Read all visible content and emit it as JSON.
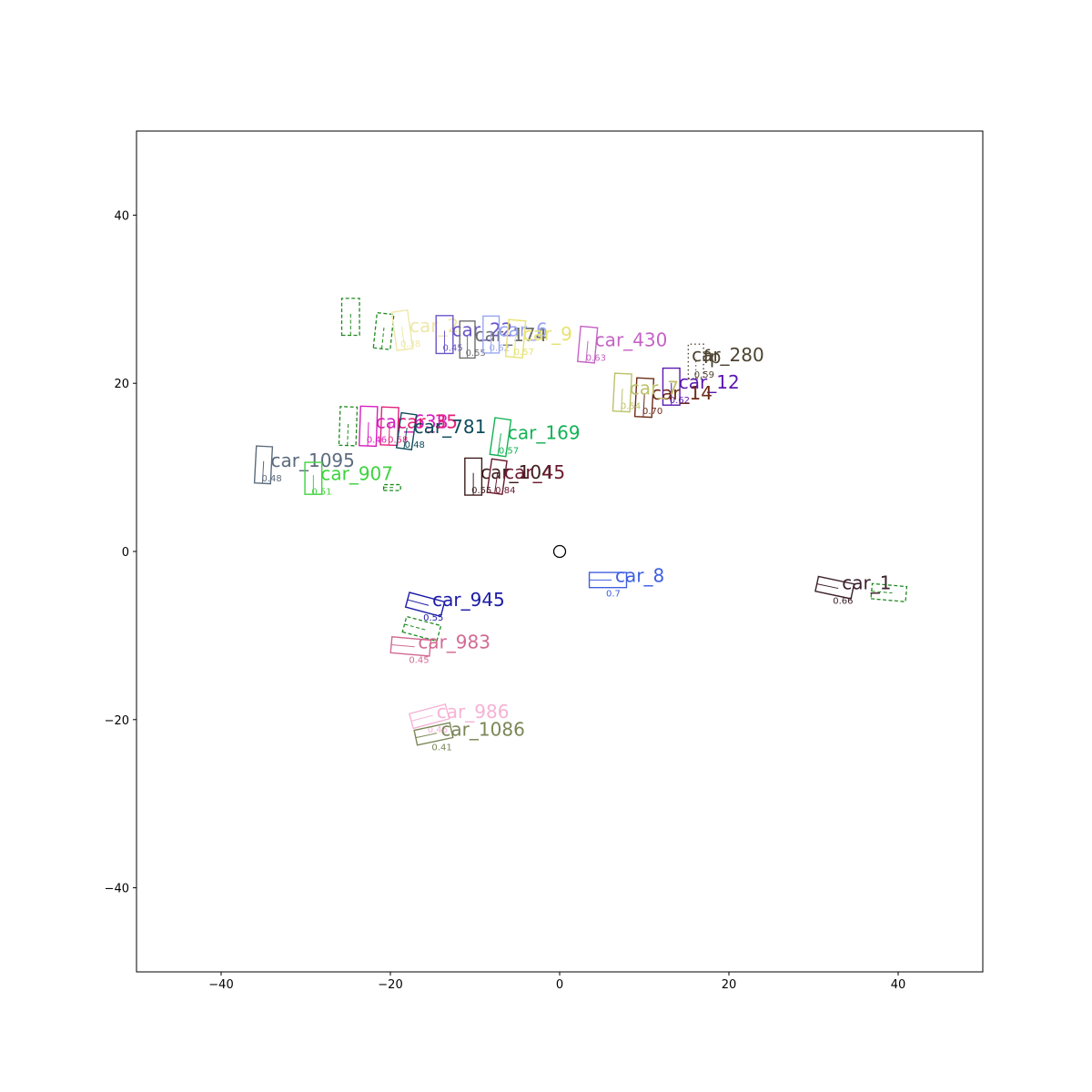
{
  "chart_data": {
    "type": "scatter",
    "title": "",
    "xlabel": "",
    "ylabel": "",
    "xlim": [
      -50,
      50
    ],
    "ylim": [
      -50,
      50
    ],
    "xticks": [
      -40,
      -20,
      0,
      20,
      40
    ],
    "yticks": [
      -40,
      -20,
      0,
      20,
      40
    ],
    "xtick_labels": [
      "−40",
      "−20",
      "0",
      "20",
      "40"
    ],
    "ytick_labels": [
      "−40",
      "−20",
      "0",
      "20",
      "40"
    ],
    "grid": false,
    "ego_marker": {
      "x": 0,
      "y": 0,
      "shape": "circle"
    },
    "detections": [
      {
        "label": "car_1",
        "score": "0.66",
        "x": 32.5,
        "y": -4.3,
        "w": 4.3,
        "l": 1.8,
        "angle": -12,
        "color": "#3b1f2b"
      },
      {
        "label": "car_8",
        "score": "0.7",
        "x": 5.7,
        "y": -3.4,
        "w": 4.4,
        "l": 1.8,
        "angle": 0,
        "color": "#3e5fe0"
      },
      {
        "label": "car_945",
        "score": "0.55",
        "x": -15.9,
        "y": -6.3,
        "w": 4.3,
        "l": 1.8,
        "angle": -15,
        "color": "#1a1aa8"
      },
      {
        "label": "car_983",
        "score": "0.45",
        "x": -17.6,
        "y": -11.3,
        "w": 4.6,
        "l": 1.9,
        "angle": -5,
        "color": "#d36a93"
      },
      {
        "label": "car_986",
        "score": "0.46",
        "x": -15.4,
        "y": -19.6,
        "w": 4.4,
        "l": 1.8,
        "angle": 15,
        "color": "#f4b3d6"
      },
      {
        "label": "car_1086",
        "score": "0.41",
        "x": -14.9,
        "y": -21.7,
        "w": 4.3,
        "l": 1.8,
        "angle": 12,
        "color": "#7b8657"
      },
      {
        "label": "car_1095",
        "score": "0.48",
        "x": -35.0,
        "y": 10.3,
        "w": 1.9,
        "l": 4.4,
        "angle": -3,
        "color": "#5c6b7e"
      },
      {
        "label": "car_907",
        "score": "0.51",
        "x": -29.1,
        "y": 8.7,
        "w": 2.0,
        "l": 3.8,
        "angle": 0,
        "color": "#3ed33e"
      },
      {
        "label": "car_638",
        "score": "0.46",
        "x": -22.6,
        "y": 14.9,
        "w": 2.0,
        "l": 4.7,
        "angle": -2,
        "color": "#d61fc0"
      },
      {
        "label": "car_35",
        "score": "0.58",
        "x": -20.1,
        "y": 14.9,
        "w": 2.0,
        "l": 4.5,
        "angle": -2,
        "color": "#e41f7b"
      },
      {
        "label": "car_781",
        "score": "0.48",
        "x": -18.1,
        "y": 14.3,
        "w": 1.8,
        "l": 4.2,
        "angle": -8,
        "color": "#0f4c5c"
      },
      {
        "label": "car_169",
        "score": "0.57",
        "x": -7.0,
        "y": 13.6,
        "w": 1.9,
        "l": 4.4,
        "angle": -8,
        "color": "#13b254"
      },
      {
        "label": "car_104",
        "score": "0.55",
        "x": -10.2,
        "y": 8.9,
        "w": 2.0,
        "l": 4.4,
        "angle": 0,
        "color": "#3d1c1c"
      },
      {
        "label": "car_45",
        "score": "0.84",
        "x": -7.4,
        "y": 8.9,
        "w": 1.8,
        "l": 4.0,
        "angle": -8,
        "color": "#6b1a2e"
      },
      {
        "label": "car_2",
        "score": "0.38",
        "x": -18.6,
        "y": 26.3,
        "w": 1.9,
        "l": 4.6,
        "angle": 8,
        "color": "#eee8aa"
      },
      {
        "label": "car_22",
        "score": "0.45",
        "x": -13.6,
        "y": 25.8,
        "w": 2.0,
        "l": 4.5,
        "angle": 0,
        "color": "#6a55c9"
      },
      {
        "label": "car_174",
        "score": "0.55",
        "x": -10.9,
        "y": 25.2,
        "w": 1.8,
        "l": 4.4,
        "angle": 0,
        "color": "#6e6e6e"
      },
      {
        "label": "car_6",
        "score": "0.62",
        "x": -8.1,
        "y": 25.8,
        "w": 1.9,
        "l": 4.4,
        "angle": 0,
        "color": "#98a6f0"
      },
      {
        "label": "car_9",
        "score": "0.57",
        "x": -5.2,
        "y": 25.3,
        "w": 2.0,
        "l": 4.4,
        "angle": -5,
        "color": "#e8e170"
      },
      {
        "label": "car_430",
        "score": "0.63",
        "x": 3.3,
        "y": 24.6,
        "w": 2.0,
        "l": 4.2,
        "angle": -5,
        "color": "#c563c5"
      },
      {
        "label": "fp",
        "score": "0.59",
        "x": 16.1,
        "y": 22.6,
        "w": 1.8,
        "l": 4.1,
        "angle": 0,
        "color": "#4d4330",
        "dashed": "1.5,3"
      },
      {
        "label": "car_280",
        "score": "",
        "x": 0,
        "y": 0,
        "w": 0,
        "l": 0,
        "angle": 0,
        "color": "#4d4330",
        "label_only": true,
        "lx": 15.6,
        "ly": 22.6
      },
      {
        "label": "car_12",
        "score": "0.62",
        "x": 13.2,
        "y": 19.6,
        "w": 2.0,
        "l": 4.4,
        "angle": 0,
        "color": "#5a16b0"
      },
      {
        "label": "car_14",
        "score": "0.70",
        "x": 10.0,
        "y": 18.3,
        "w": 2.0,
        "l": 4.6,
        "angle": -3,
        "color": "#6e2a18"
      },
      {
        "label": "car_7",
        "score": "0.54",
        "x": 7.4,
        "y": 18.9,
        "w": 2.0,
        "l": 4.5,
        "angle": -3,
        "color": "#bcc26a"
      }
    ],
    "ground_truth": [
      {
        "x": 38.9,
        "y": -4.9,
        "w": 4.1,
        "l": 1.8,
        "angle": -5
      },
      {
        "x": -16.3,
        "y": -9.2,
        "w": 4.2,
        "l": 1.9,
        "angle": -15
      },
      {
        "x": -19.8,
        "y": 7.6,
        "w": 2.0,
        "l": 0.7,
        "angle": 0
      },
      {
        "x": -25.0,
        "y": 14.9,
        "w": 2.0,
        "l": 4.6,
        "angle": -2
      },
      {
        "x": -20.8,
        "y": 26.2,
        "w": 2.0,
        "l": 4.2,
        "angle": -6
      },
      {
        "x": -24.7,
        "y": 27.9,
        "w": 2.1,
        "l": 4.4,
        "angle": 0
      }
    ],
    "gt_color": "#1e8a1e"
  }
}
